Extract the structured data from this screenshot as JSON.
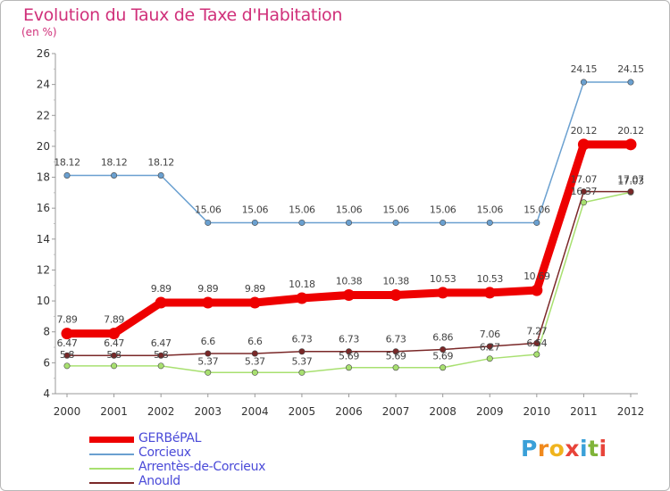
{
  "header": {
    "title": "Evolution du Taux de Taxe d'Habitation",
    "subtitle": "(en %)"
  },
  "logo": {
    "letters": [
      "P",
      "r",
      "o",
      "x",
      "i",
      "t",
      "i"
    ],
    "colors": [
      "#3aa0d8",
      "#f08a1e",
      "#f0b41e",
      "#e8443a",
      "#3aa0d8",
      "#80b43a",
      "#e8443a"
    ]
  },
  "chart_data": {
    "type": "line",
    "title": "Evolution du Taux de Taxe d'Habitation",
    "ylabel": "(en %)",
    "xlabel": "",
    "x": [
      "2000",
      "2001",
      "2002",
      "2003",
      "2004",
      "2005",
      "2006",
      "2007",
      "2008",
      "2009",
      "2010",
      "2011",
      "2012"
    ],
    "ylim": [
      4,
      26
    ],
    "yticks": [
      4,
      6,
      8,
      10,
      12,
      14,
      16,
      18,
      20,
      22,
      24,
      26
    ],
    "grid": false,
    "legend": "bottom-left",
    "series": [
      {
        "name": "GERBéPAL",
        "color": "#ee0000",
        "values": [
          7.89,
          7.89,
          9.89,
          9.89,
          9.89,
          10.18,
          10.38,
          10.38,
          10.53,
          10.53,
          10.69,
          20.12,
          20.12
        ],
        "labels": [
          "7.89",
          "7.89",
          "9.89",
          "9.89",
          "9.89",
          "10.18",
          "10.38",
          "10.38",
          "10.53",
          "10.53",
          "10.69",
          "20.12",
          "20.12"
        ]
      },
      {
        "name": "Corcieux",
        "color": "#6aa0d0",
        "values": [
          18.12,
          18.12,
          18.12,
          15.06,
          15.06,
          15.06,
          15.06,
          15.06,
          15.06,
          15.06,
          15.06,
          24.15,
          24.15
        ],
        "labels": [
          "18.12",
          "18.12",
          "18.12",
          "15.06",
          "15.06",
          "15.06",
          "15.06",
          "15.06",
          "15.06",
          "15.06",
          "15.06",
          "24.15",
          "24.15"
        ]
      },
      {
        "name": "Arrentès-de-Corcieux",
        "color": "#a8e070",
        "values": [
          5.8,
          5.8,
          5.8,
          5.37,
          5.37,
          5.37,
          5.69,
          5.69,
          5.69,
          6.27,
          6.54,
          16.37,
          17.03
        ],
        "labels": [
          "5.8",
          "5.8",
          "5.8",
          "5.37",
          "5.37",
          "5.37",
          "5.69",
          "5.69",
          "5.69",
          "6.27",
          "6.54",
          "16.37",
          "17.03"
        ]
      },
      {
        "name": "Anould",
        "color": "#7a2828",
        "values": [
          6.47,
          6.47,
          6.47,
          6.6,
          6.6,
          6.73,
          6.73,
          6.73,
          6.86,
          7.06,
          7.27,
          17.07,
          17.07
        ],
        "labels": [
          "6.47",
          "6.47",
          "6.47",
          "6.6",
          "6.6",
          "6.73",
          "6.73",
          "6.73",
          "6.86",
          "7.06",
          "7.27",
          "17.07",
          "17.07"
        ]
      }
    ]
  }
}
